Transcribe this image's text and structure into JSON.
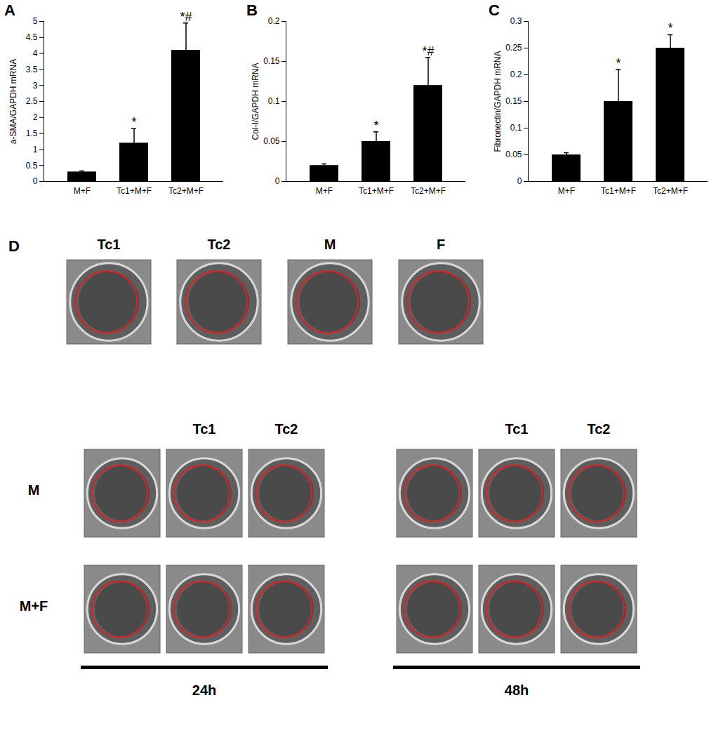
{
  "chart_data": [
    {
      "type": "bar",
      "title": "A",
      "y_label": "a-SMA/GAPDH mRNA",
      "categories": [
        "M+F",
        "Tc1+M+F",
        "Tc2+M+F"
      ],
      "values": [
        0.3,
        1.2,
        4.1
      ],
      "errors": [
        0.03,
        0.45,
        0.85
      ],
      "color": "#000000",
      "ylim": [
        0,
        5
      ],
      "yticks": [
        0,
        0.5,
        1,
        1.5,
        2,
        2.5,
        3,
        3.5,
        4,
        4.5,
        5
      ],
      "annotations": [
        {
          "category": "Tc1+M+F",
          "text": "*"
        },
        {
          "category": "Tc2+M+F",
          "text": "*#"
        }
      ]
    },
    {
      "type": "bar",
      "title": "B",
      "y_label": "Col-I/GAPDH mRNA",
      "categories": [
        "M+F",
        "Tc1+M+F",
        "Tc2+M+F"
      ],
      "values": [
        0.02,
        0.05,
        0.12
      ],
      "errors": [
        0.002,
        0.012,
        0.035
      ],
      "color": "#000000",
      "ylim": [
        0,
        0.2
      ],
      "yticks": [
        0,
        0.05,
        0.1,
        0.15,
        0.2
      ],
      "annotations": [
        {
          "category": "Tc1+M+F",
          "text": "*"
        },
        {
          "category": "Tc2+M+F",
          "text": "*#"
        }
      ]
    },
    {
      "type": "bar",
      "title": "C",
      "y_label": "Fibronectin/GAPDH mRNA",
      "categories": [
        "M+F",
        "Tc1+M+F",
        "Tc2+M+F"
      ],
      "values": [
        0.05,
        0.15,
        0.25
      ],
      "errors": [
        0.004,
        0.06,
        0.025
      ],
      "color": "#000000",
      "ylim": [
        0,
        0.3
      ],
      "yticks": [
        0,
        0.05,
        0.1,
        0.15,
        0.2,
        0.25,
        0.3
      ],
      "annotations": [
        {
          "category": "Tc1+M+F",
          "text": "*"
        },
        {
          "category": "Tc2+M+F",
          "text": "*"
        }
      ]
    }
  ],
  "panel_d": {
    "title": "D",
    "controls": [
      "Tc1",
      "Tc2",
      "M",
      "F"
    ],
    "rows": [
      "M",
      "M+F"
    ],
    "times": [
      {
        "label": "24h",
        "columns": [
          "Tc1",
          "Tc2"
        ]
      },
      {
        "label": "48h",
        "columns": [
          "Tc1",
          "Tc2"
        ]
      }
    ]
  }
}
